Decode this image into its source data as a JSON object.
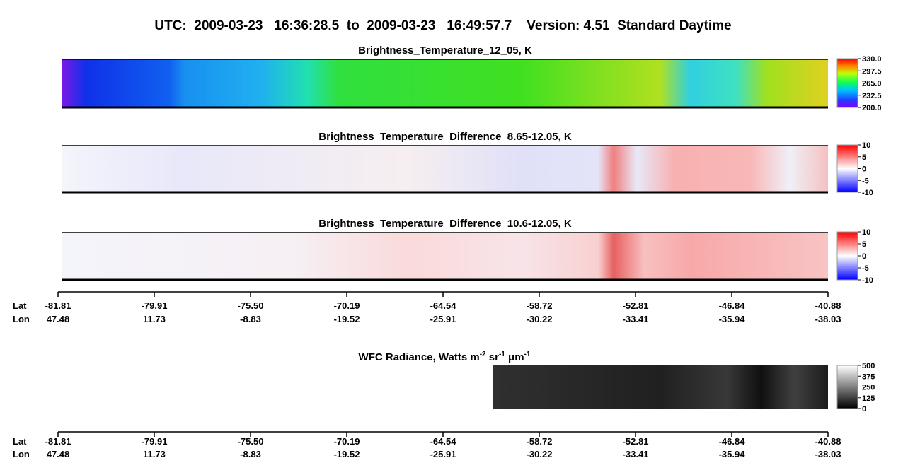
{
  "header": {
    "title": "UTC:  2009-03-23   16:36:28.5  to  2009-03-23   16:49:57.7    Version: 4.51  Standard Daytime"
  },
  "panels": [
    {
      "title": "Brightness_Temperature_12_05, K",
      "colorbar": [
        "330.0",
        "297.5",
        "265.0",
        "232.5",
        "200.0"
      ]
    },
    {
      "title": "Brightness_Temperature_Difference_8.65-12.05, K",
      "colorbar": [
        "10",
        "5",
        "0",
        "-5",
        "-10"
      ]
    },
    {
      "title": "Brightness_Temperature_Difference_10.6-12.05, K",
      "colorbar": [
        "10",
        "5",
        "0",
        "-5",
        "-10"
      ]
    }
  ],
  "wfc": {
    "title_parts": [
      "WFC Radiance, Watts m",
      "-2",
      " sr",
      "-1",
      " μm",
      "-1"
    ],
    "colorbar": [
      "500",
      "375",
      "250",
      "125",
      "0"
    ]
  },
  "axis": {
    "lat_label": "Lat",
    "lon_label": "Lon",
    "ticks": [
      {
        "lat": "-81.81",
        "lon": "47.48"
      },
      {
        "lat": "-79.91",
        "lon": "11.73"
      },
      {
        "lat": "-75.50",
        "lon": "-8.83"
      },
      {
        "lat": "-70.19",
        "lon": "-19.52"
      },
      {
        "lat": "-64.54",
        "lon": "-25.91"
      },
      {
        "lat": "-58.72",
        "lon": "-30.22"
      },
      {
        "lat": "-52.81",
        "lon": "-33.41"
      },
      {
        "lat": "-46.84",
        "lon": "-35.94"
      },
      {
        "lat": "-40.88",
        "lon": "-38.03"
      }
    ]
  }
}
